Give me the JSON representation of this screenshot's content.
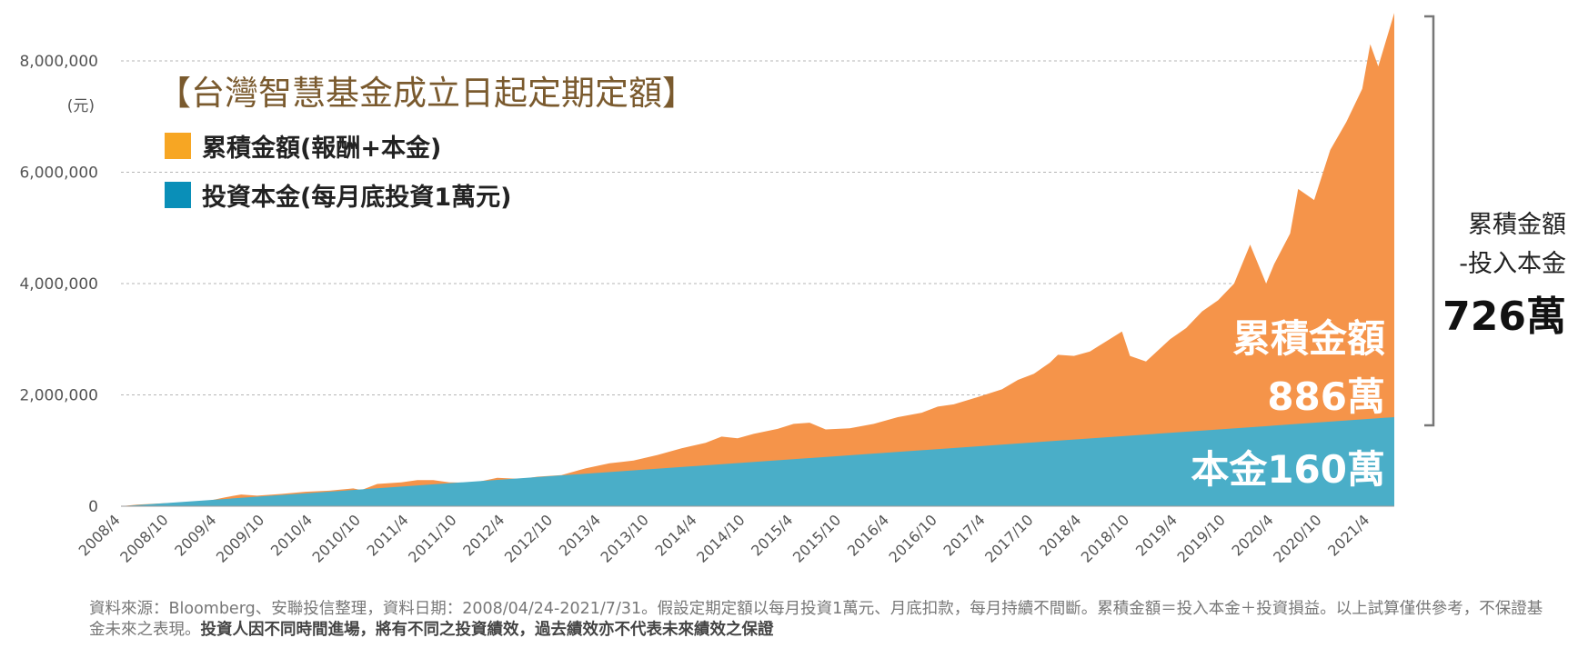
{
  "chart_data": {
    "type": "area",
    "title": "【台灣智慧基金成立日起定期定額】",
    "y_unit": "(元)",
    "ylim": [
      0,
      8800000
    ],
    "yticks": [
      0,
      2000000,
      4000000,
      6000000,
      8000000
    ],
    "ytick_labels": [
      "0",
      "2,000,000",
      "4,000,000",
      "6,000,000",
      "8,000,000"
    ],
    "grid": "horizontal-dashed",
    "x_start": "2008/4",
    "x_end": "2021/7",
    "xtick_labels": [
      "2008/4",
      "2008/10",
      "2009/4",
      "2009/10",
      "2010/4",
      "2010/10",
      "2011/4",
      "2011/10",
      "2012/4",
      "2012/10",
      "2013/4",
      "2013/10",
      "2014/4",
      "2014/10",
      "2015/4",
      "2015/10",
      "2016/4",
      "2016/10",
      "2017/4",
      "2017/10",
      "2018/4",
      "2018/10",
      "2019/4",
      "2019/10",
      "2020/4",
      "2020/10",
      "2021/4"
    ],
    "series": [
      {
        "name": "累積金額(報酬+本金)",
        "color": "#f5944a",
        "points": [
          [
            "2008/4",
            0
          ],
          [
            "2008/6",
            30000
          ],
          [
            "2008/9",
            50000
          ],
          [
            "2008/12",
            70000
          ],
          [
            "2009/3",
            100000
          ],
          [
            "2009/5",
            160000
          ],
          [
            "2009/7",
            210000
          ],
          [
            "2009/9",
            190000
          ],
          [
            "2009/12",
            220000
          ],
          [
            "2010/3",
            260000
          ],
          [
            "2010/6",
            280000
          ],
          [
            "2010/9",
            320000
          ],
          [
            "2010/10",
            290000
          ],
          [
            "2010/12",
            400000
          ],
          [
            "2011/3",
            430000
          ],
          [
            "2011/5",
            470000
          ],
          [
            "2011/7",
            470000
          ],
          [
            "2011/9",
            430000
          ],
          [
            "2011/12",
            420000
          ],
          [
            "2012/3",
            510000
          ],
          [
            "2012/6",
            490000
          ],
          [
            "2012/8",
            530000
          ],
          [
            "2012/11",
            560000
          ],
          [
            "2013/2",
            680000
          ],
          [
            "2013/5",
            770000
          ],
          [
            "2013/8",
            820000
          ],
          [
            "2013/11",
            920000
          ],
          [
            "2014/2",
            1040000
          ],
          [
            "2014/5",
            1140000
          ],
          [
            "2014/7",
            1250000
          ],
          [
            "2014/9",
            1220000
          ],
          [
            "2014/11",
            1300000
          ],
          [
            "2015/2",
            1390000
          ],
          [
            "2015/4",
            1480000
          ],
          [
            "2015/6",
            1500000
          ],
          [
            "2015/8",
            1380000
          ],
          [
            "2015/11",
            1400000
          ],
          [
            "2016/2",
            1480000
          ],
          [
            "2016/5",
            1600000
          ],
          [
            "2016/8",
            1680000
          ],
          [
            "2016/10",
            1790000
          ],
          [
            "2016/12",
            1830000
          ],
          [
            "2017/3",
            1960000
          ],
          [
            "2017/6",
            2100000
          ],
          [
            "2017/8",
            2270000
          ],
          [
            "2017/10",
            2380000
          ],
          [
            "2017/12",
            2580000
          ],
          [
            "2018/1",
            2720000
          ],
          [
            "2018/3",
            2700000
          ],
          [
            "2018/5",
            2780000
          ],
          [
            "2018/7",
            2960000
          ],
          [
            "2018/9",
            3140000
          ],
          [
            "2018/10",
            2700000
          ],
          [
            "2018/12",
            2600000
          ],
          [
            "2019/3",
            3000000
          ],
          [
            "2019/5",
            3200000
          ],
          [
            "2019/7",
            3500000
          ],
          [
            "2019/9",
            3700000
          ],
          [
            "2019/11",
            4000000
          ],
          [
            "2020/1",
            4700000
          ],
          [
            "2020/3",
            4000000
          ],
          [
            "2020/4",
            4350000
          ],
          [
            "2020/6",
            4900000
          ],
          [
            "2020/7",
            5700000
          ],
          [
            "2020/9",
            5500000
          ],
          [
            "2020/11",
            6400000
          ],
          [
            "2021/1",
            6900000
          ],
          [
            "2021/3",
            7500000
          ],
          [
            "2021/4",
            8300000
          ],
          [
            "2021/5",
            7900000
          ],
          [
            "2021/7",
            8860000
          ]
        ]
      },
      {
        "name": "投資本金(每月底投資1萬元)",
        "color": "#4aaec8",
        "points": [
          [
            "2008/4",
            0
          ],
          [
            "2021/7",
            1600000
          ]
        ]
      }
    ],
    "annotations": {
      "accum_label": "累積金額",
      "accum_value": "886萬",
      "principal_label": "本金160萬",
      "diff_label_1": "累積金額",
      "diff_label_2": "-投入本金",
      "diff_value": "726萬"
    }
  },
  "footnote": {
    "normal": "資料來源：Bloomberg、安聯投信整理，資料日期：2008/04/24-2021/7/31。假設定期定額以每月投資1萬元、月底扣款，每月持續不間斷。累積金額＝投入本金＋投資損益。以上試算僅供參考，不保證基金未來之表現。",
    "bold": "投資人因不同時間進場，將有不同之投資績效，過去績效亦不代表未來績效之保證"
  },
  "colors": {
    "accumulated": "#f5944a",
    "principal": "#4aaec8",
    "legend_accumulated": "#f7a623",
    "legend_principal": "#0a8fb8",
    "title": "#7a5a2e"
  }
}
